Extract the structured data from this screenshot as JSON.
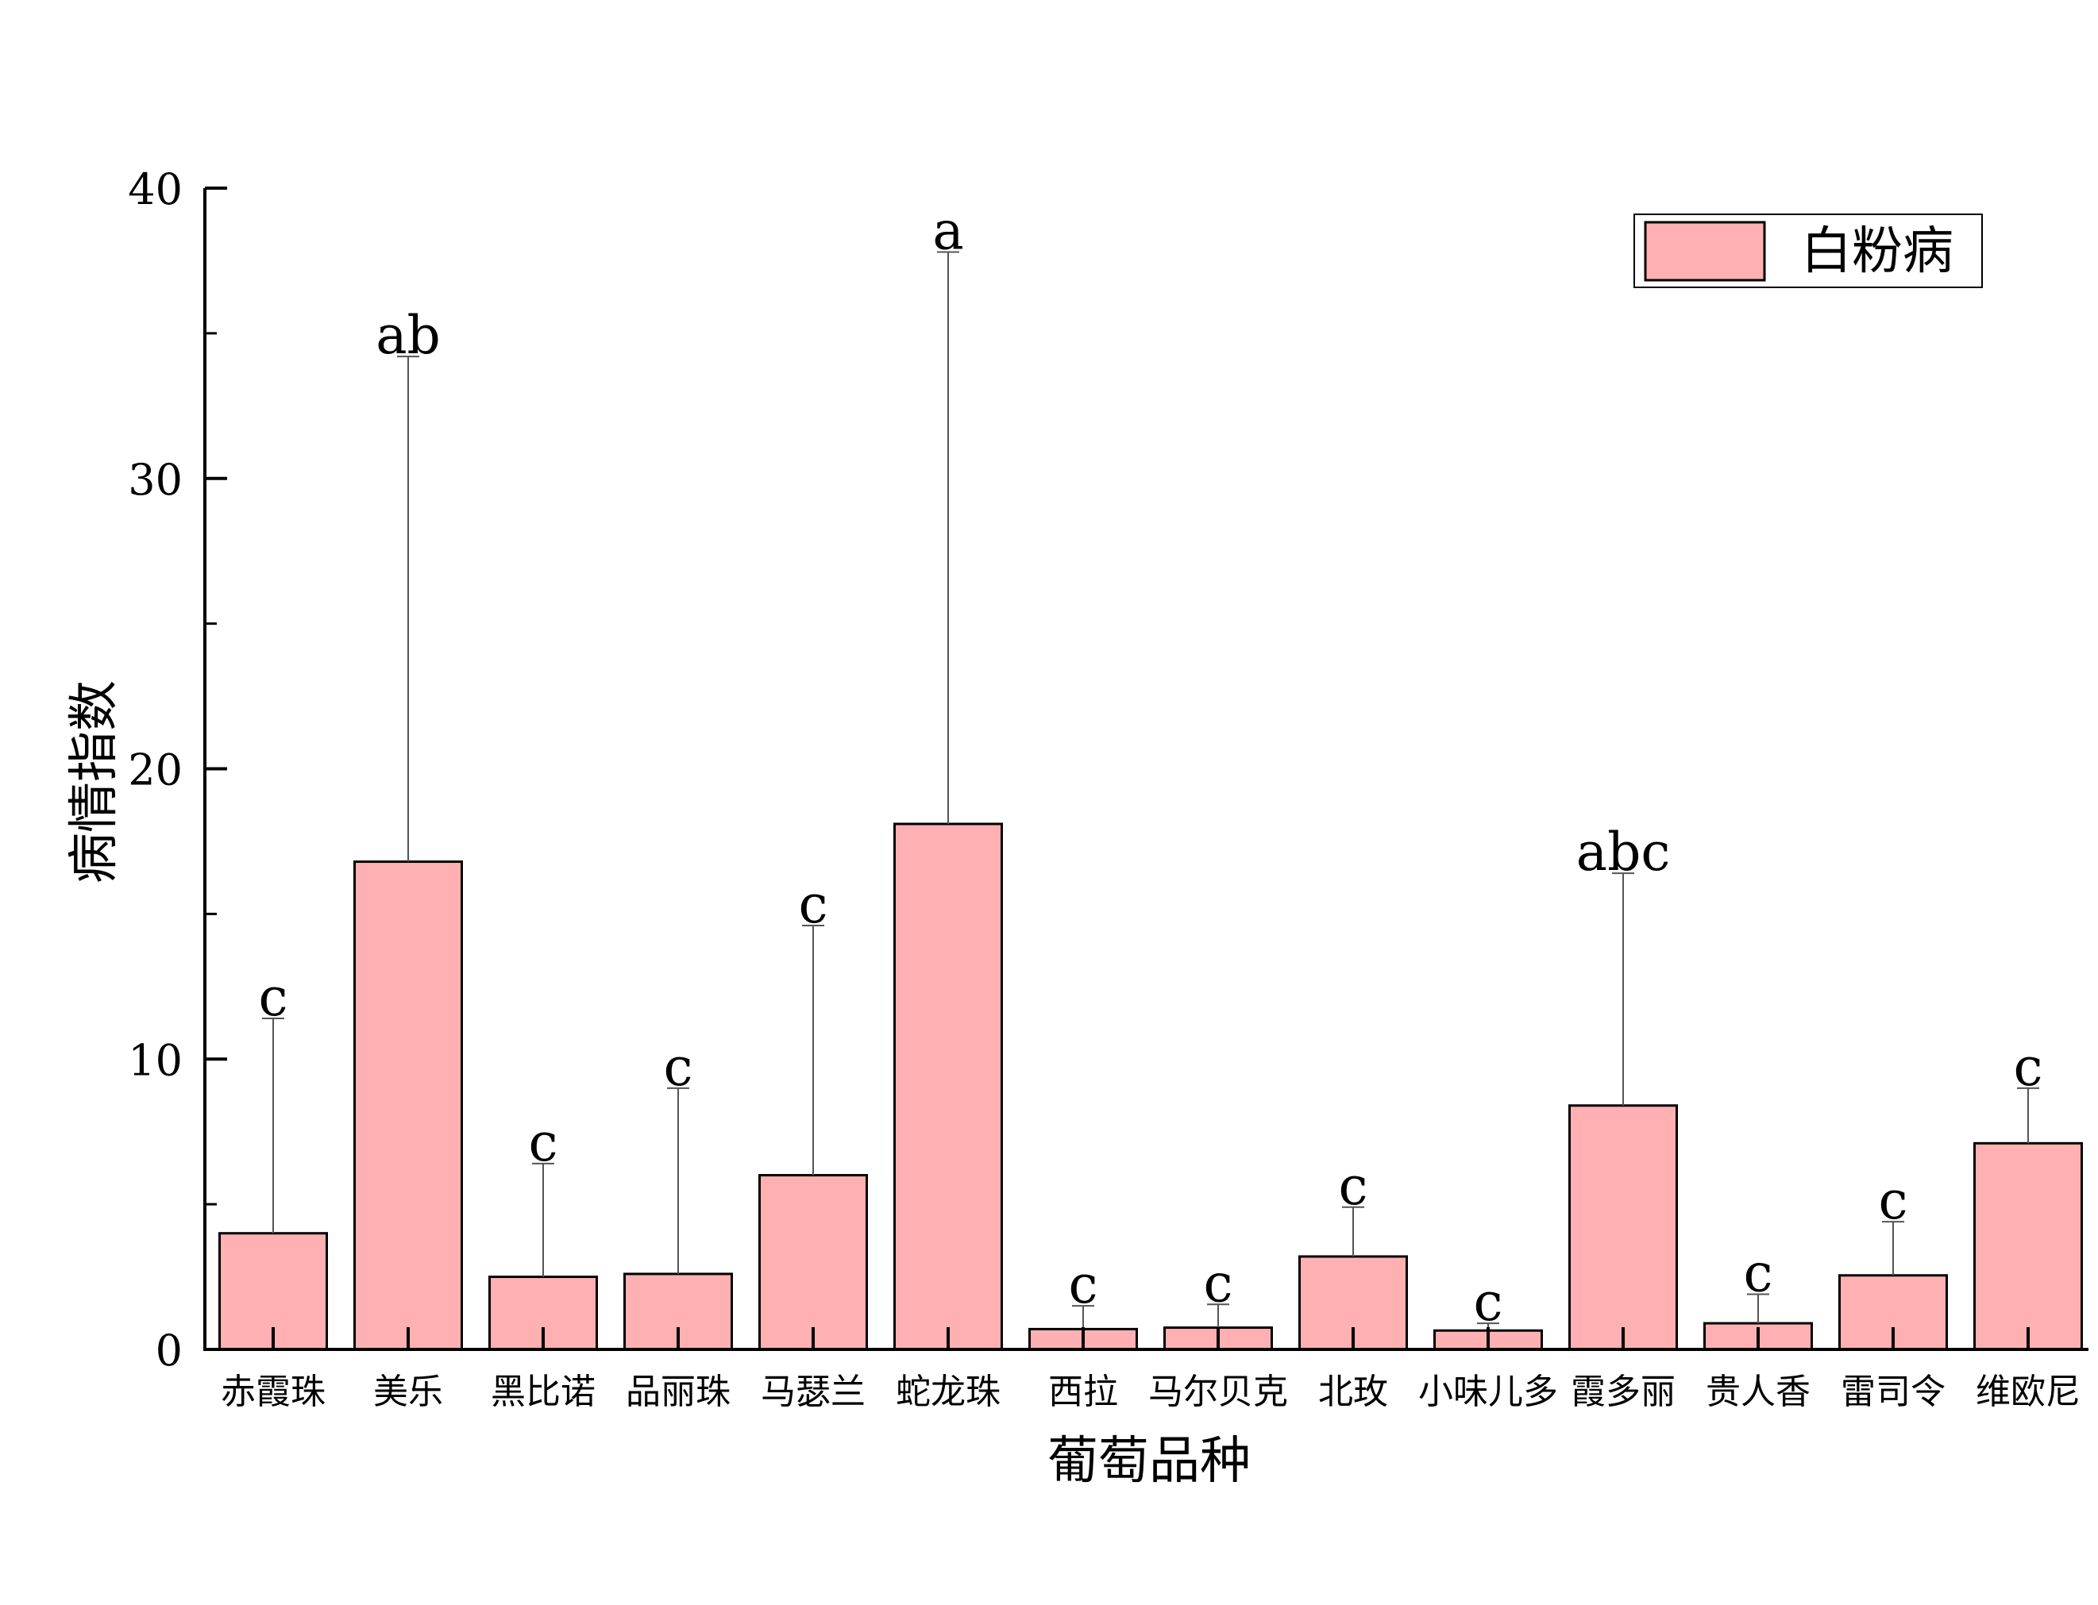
{
  "chart_data": {
    "type": "bar",
    "xlabel": "葡萄品种",
    "ylabel": "病情指数",
    "ylim": [
      0,
      40
    ],
    "y_ticks": [
      "0",
      "10",
      "20",
      "30",
      "40"
    ],
    "y_minor_step": 5,
    "grid": false,
    "legend_position": "top-right",
    "categories": [
      "赤霞珠",
      "美乐",
      "黑比诺",
      "品丽珠",
      "马瑟兰",
      "蛇龙珠",
      "西拉",
      "马尔贝克",
      "北玫",
      "小味儿多",
      "霞多丽",
      "贵人香",
      "雷司令",
      "维欧尼"
    ],
    "series": [
      {
        "name": "白粉病",
        "color": "#FFB0B2",
        "values": [
          4.0,
          16.8,
          2.5,
          2.6,
          6.0,
          18.1,
          0.7,
          0.75,
          3.2,
          0.65,
          8.4,
          0.9,
          2.55,
          7.1
        ],
        "error_upper": [
          7.4,
          17.4,
          3.9,
          6.4,
          8.6,
          19.7,
          0.8,
          0.8,
          1.7,
          0.25,
          8.0,
          1.0,
          1.85,
          1.9
        ],
        "significance": [
          "c",
          "ab",
          "c",
          "c",
          "c",
          "a",
          "c",
          "c",
          "c",
          "c",
          "abc",
          "c",
          "c",
          "c"
        ]
      }
    ]
  }
}
